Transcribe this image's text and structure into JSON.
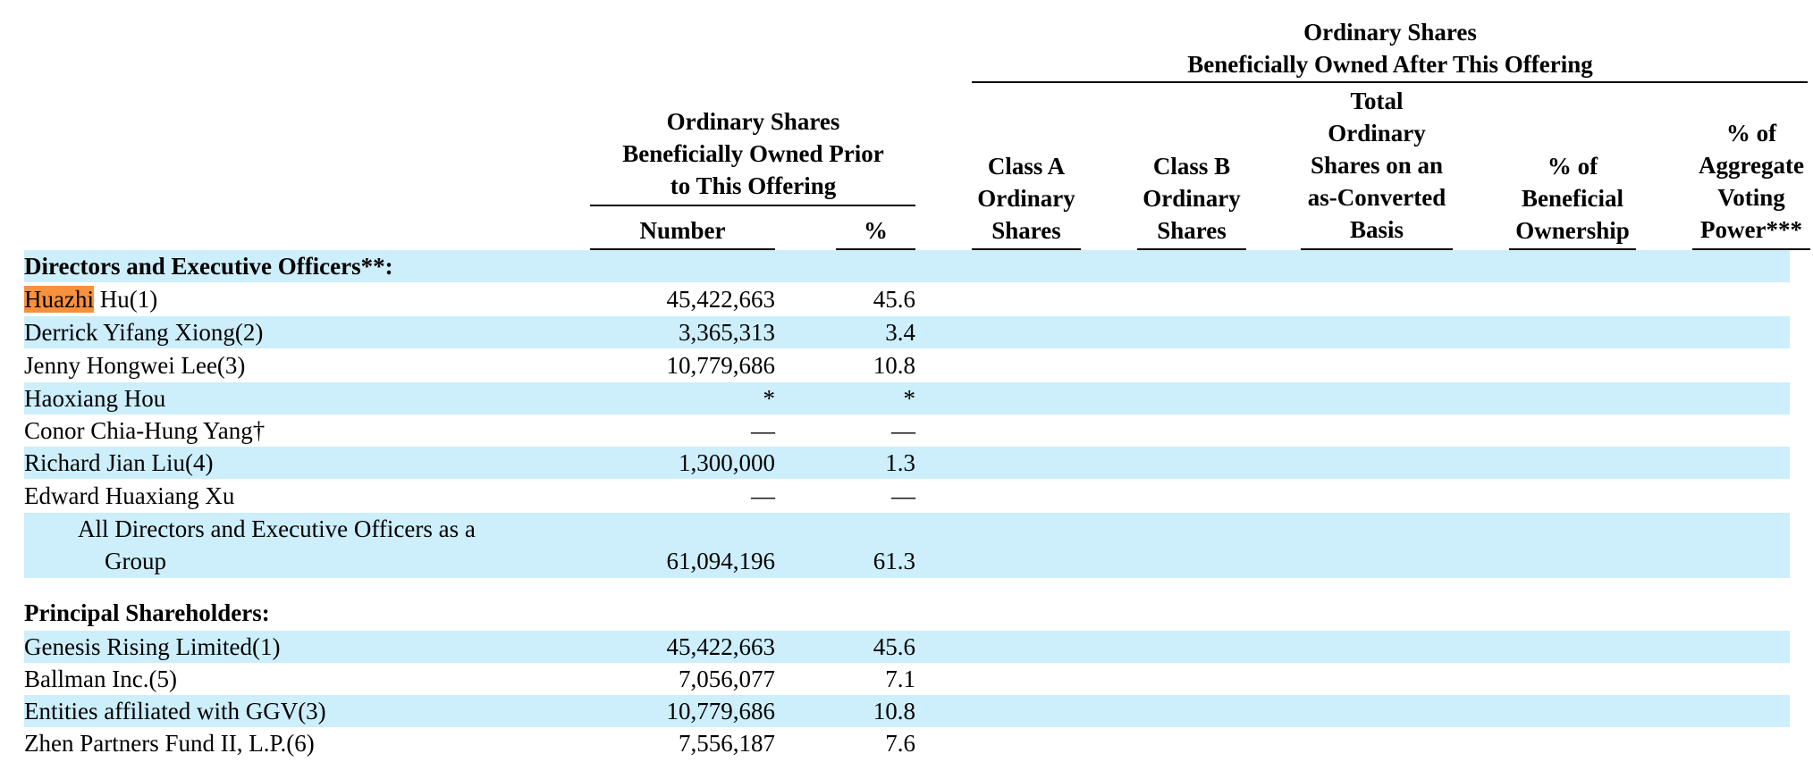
{
  "headers": {
    "prior_group": [
      "Ordinary Shares",
      "Beneficially Owned Prior",
      "to This Offering"
    ],
    "after_group": [
      "Ordinary Shares",
      "Beneficially Owned After This Offering"
    ],
    "number": "Number",
    "percent": "%",
    "class_a": [
      "Class A",
      "Ordinary",
      "Shares"
    ],
    "class_b": [
      "Class B",
      "Ordinary",
      "Shares"
    ],
    "total": [
      "Total",
      "Ordinary",
      "Shares on an",
      "as-Converted",
      "Basis"
    ],
    "beneficial": [
      "% of",
      "Beneficial",
      "Ownership"
    ],
    "voting": [
      "% of",
      "Aggregate",
      "Voting",
      "Power***"
    ]
  },
  "sections": {
    "directors": "Directors and Executive Officers**:",
    "principal": "Principal Shareholders:"
  },
  "directors_rows": [
    {
      "name_highlight": "Huazhi",
      "name_rest": " Hu(1)",
      "number": "45,422,663",
      "percent": "45.6"
    },
    {
      "name": "Derrick Yifang Xiong(2)",
      "number": "3,365,313",
      "percent": "3.4"
    },
    {
      "name": "Jenny Hongwei Lee(3)",
      "number": "10,779,686",
      "percent": "10.8"
    },
    {
      "name": "Haoxiang Hou",
      "number": "*",
      "percent": "*"
    },
    {
      "name": "Conor Chia-Hung Yang†",
      "number": "—",
      "percent": "—"
    },
    {
      "name": "Richard Jian Liu(4)",
      "number": "1,300,000",
      "percent": "1.3"
    },
    {
      "name": "Edward Huaxiang Xu",
      "number": "—",
      "percent": "—"
    }
  ],
  "group_row": {
    "line1": "All Directors and Executive Officers as a",
    "line2": "Group",
    "number": "61,094,196",
    "percent": "61.3"
  },
  "principal_rows": [
    {
      "name": "Genesis Rising Limited(1)",
      "number": "45,422,663",
      "percent": "45.6"
    },
    {
      "name": "Ballman Inc.(5)",
      "number": "7,056,077",
      "percent": "7.1"
    },
    {
      "name": "Entities affiliated with GGV(3)",
      "number": "10,779,686",
      "percent": "10.8"
    },
    {
      "name": "Zhen Partners Fund II, L.P.(6)",
      "number": "7,556,187",
      "percent": "7.6"
    }
  ]
}
